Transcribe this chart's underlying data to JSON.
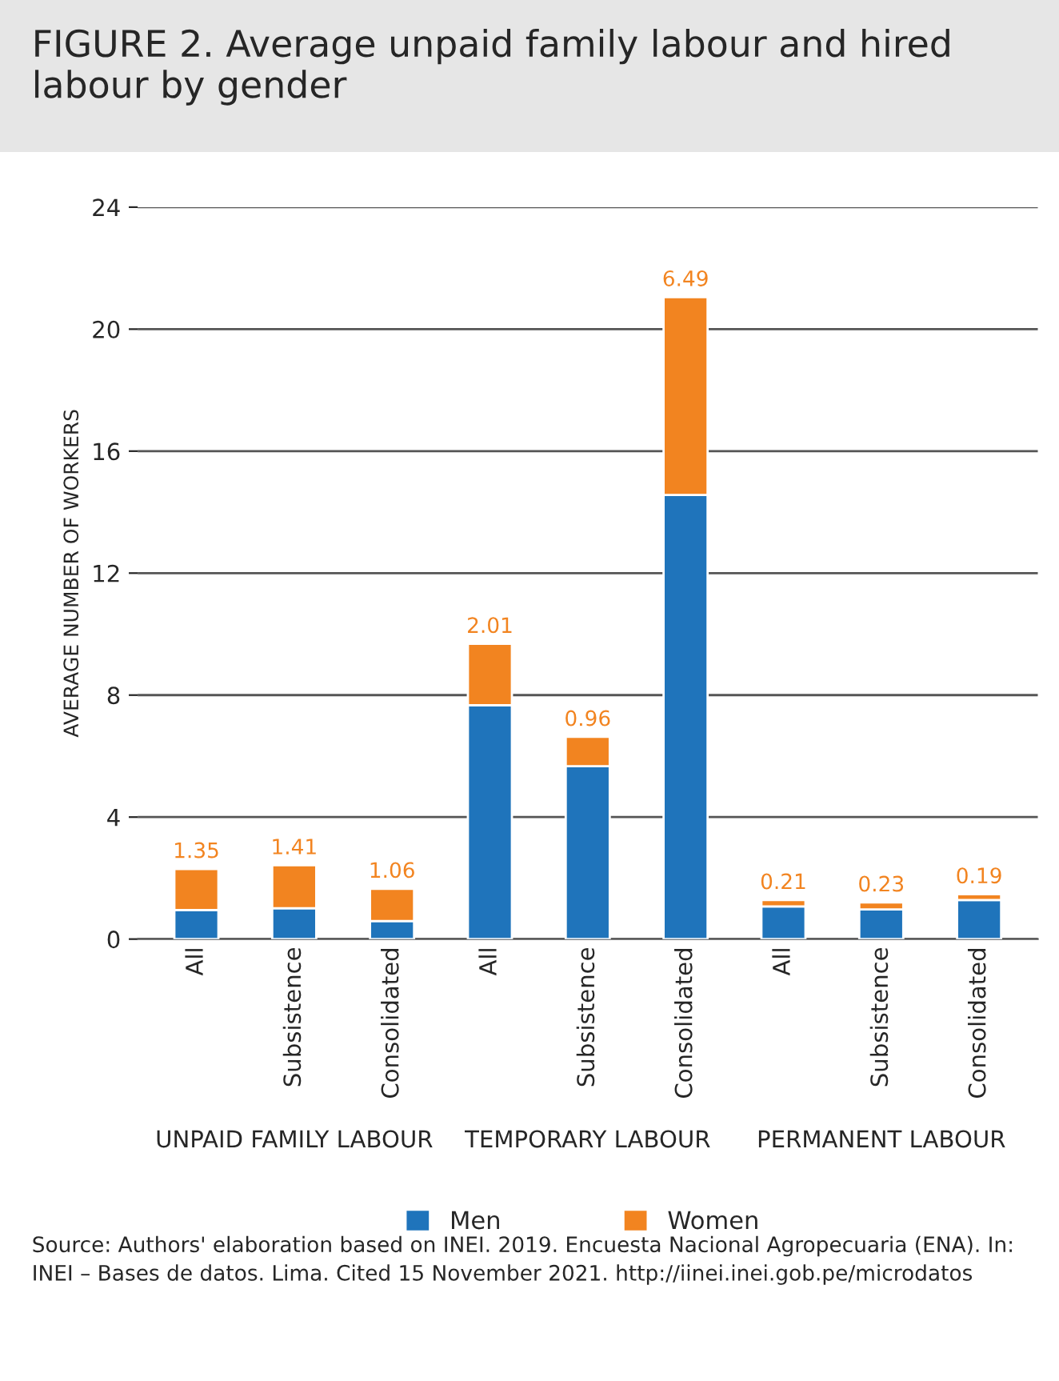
{
  "chart_data": {
    "type": "bar",
    "title": "FIGURE 2. Average unpaid family labour and hired labour by gender",
    "ylabel": "AVERAGE NUMBER OF WORKERS",
    "categories": [
      "All",
      "Subsistence",
      "Consolidated",
      "All",
      "Subsistence",
      "Consolidated",
      "All",
      "Subsistence",
      "Consolidated"
    ],
    "stacked": true,
    "series": [
      {
        "name": "Men",
        "color": "#1f74bb",
        "values": [
          0.95,
          1.01,
          0.59,
          7.67,
          5.67,
          14.56,
          1.07,
          0.97,
          1.28
        ]
      },
      {
        "name": "Women",
        "color": "#f28420",
        "values": [
          1.35,
          1.41,
          1.06,
          2.01,
          0.96,
          6.49,
          0.21,
          0.23,
          0.19
        ],
        "value_labels": [
          "1.35",
          "1.41",
          "1.06",
          "2.01",
          "0.96",
          "6.49",
          "0.21",
          "0.23",
          "0.19"
        ]
      }
    ],
    "ylim": [
      0,
      24
    ],
    "yticks": [
      0,
      4,
      8,
      12,
      16,
      20,
      24
    ],
    "grid": "y",
    "legend": "bottom",
    "annotations": [
      "UNPAID FAMILY LABOUR",
      "TEMPORARY LABOUR",
      "PERMANENT LABOUR",
      "Source: Authors' elaboration based on INEI. 2019. Encuesta Nacional Agropecuaria (ENA). In: INEI – Bases de datos. Lima. Cited 15 November 2021. http://iinei.inei.gob.pe/microdatos"
    ]
  }
}
